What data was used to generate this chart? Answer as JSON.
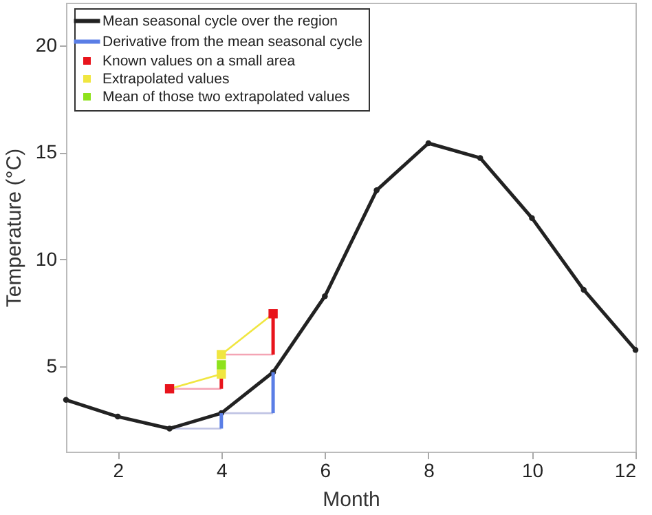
{
  "chart_data": {
    "type": "line",
    "xlabel": "Month",
    "ylabel": "Temperature (°C)",
    "xlim": [
      1,
      12
    ],
    "xticks": [
      2,
      4,
      6,
      8,
      10,
      12
    ],
    "ylim": [
      1,
      22
    ],
    "yticks": [
      5,
      10,
      15,
      20
    ],
    "grid": false,
    "legend": "top left",
    "series": [
      {
        "color": "#c0c4e4",
        "x": [
          3,
          4,
          null,
          4,
          5
        ],
        "values": [
          2.08,
          2.08,
          null,
          2.8,
          2.8
        ]
      },
      {
        "color": "#f4a4b4",
        "x": [
          3,
          4,
          null,
          4,
          5
        ],
        "values": [
          3.94,
          3.94,
          null,
          5.54,
          5.54
        ]
      },
      {
        "color": "#f0e640",
        "x": [
          3,
          4,
          null,
          4,
          5
        ],
        "values": [
          3.94,
          4.63,
          null,
          5.54,
          7.45
        ]
      },
      {
        "name": "Mean seasonal cycle over the region",
        "color": "#222222",
        "marker": "circle",
        "x": [
          1,
          2,
          3,
          4,
          5,
          6,
          7,
          8,
          9,
          10,
          11,
          12
        ],
        "values": [
          3.42,
          2.64,
          2.08,
          2.8,
          4.72,
          8.27,
          13.23,
          15.43,
          14.74,
          11.93,
          8.57,
          5.76
        ]
      },
      {
        "name": "Derivative from the mean seasonal cycle",
        "color": "#5a7ee6",
        "x": [
          4,
          4,
          null,
          5,
          5
        ],
        "values": [
          2.08,
          2.8,
          null,
          2.8,
          4.72
        ]
      },
      {
        "color": "#e8141c",
        "x": [
          4,
          4,
          null,
          5,
          5
        ],
        "values": [
          3.94,
          4.63,
          null,
          5.54,
          7.45
        ]
      },
      {
        "type": "scatter",
        "name": "Known values on a small area",
        "color": "#e8141c",
        "marker": "square",
        "x": [
          3,
          5
        ],
        "values": [
          3.94,
          7.45
        ]
      },
      {
        "type": "scatter",
        "name": "Extrapolated values",
        "color": "#f0e640",
        "marker": "square",
        "x": [
          4,
          4
        ],
        "values": [
          4.63,
          5.54
        ]
      },
      {
        "type": "scatter",
        "name": "Mean of those two extrapolated values",
        "color": "#8ee21c",
        "marker": "square",
        "x": [
          4
        ],
        "values": [
          5.06
        ]
      }
    ]
  }
}
